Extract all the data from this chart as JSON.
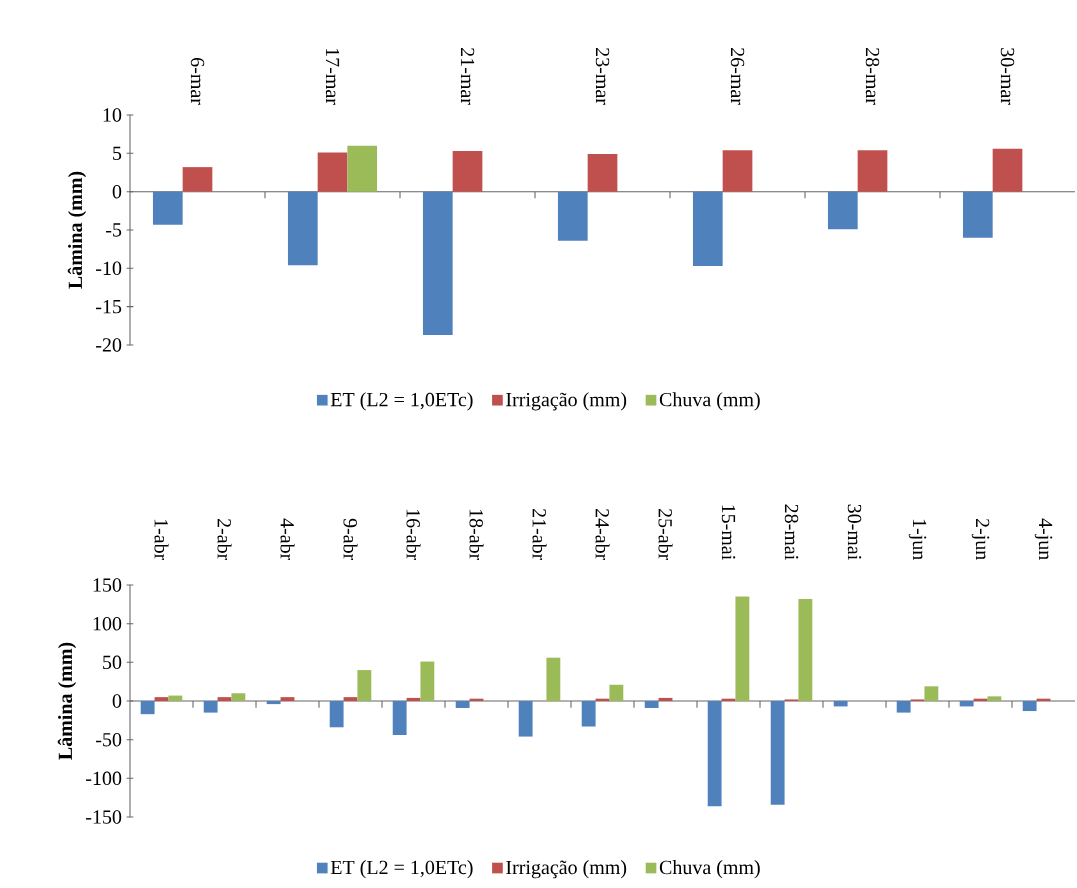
{
  "chart_data": [
    {
      "type": "bar",
      "ylabel": "Lâmina (mm)",
      "categories": [
        "6-mar",
        "17-mar",
        "21-mar",
        "23-mar",
        "26-mar",
        "28-mar",
        "30-mar"
      ],
      "ylim": [
        -20,
        10
      ],
      "yticks": [
        -20,
        -15,
        -10,
        -5,
        0,
        5,
        10
      ],
      "legend": "bottom",
      "series": [
        {
          "name": "ET (L2 = 1,0ETc)",
          "color": "#4f81bd",
          "values": [
            -4.3,
            -9.6,
            -18.7,
            -6.4,
            -9.7,
            -4.9,
            -6.0
          ]
        },
        {
          "name": "Irrigação (mm)",
          "color": "#c0504d",
          "values": [
            3.2,
            5.1,
            5.3,
            4.9,
            5.4,
            5.4,
            5.6
          ]
        },
        {
          "name": "Chuva (mm)",
          "color": "#9bbb59",
          "values": [
            null,
            6.0,
            null,
            null,
            null,
            null,
            null
          ]
        }
      ]
    },
    {
      "type": "bar",
      "ylabel": "Lâmina (mm)",
      "categories": [
        "1-abr",
        "2-abr",
        "4-abr",
        "9-abr",
        "16-abr",
        "18-abr",
        "21-abr",
        "24-abr",
        "25-abr",
        "15-mai",
        "28-mai",
        "30-mai",
        "1-jun",
        "2-jun",
        "4-jun"
      ],
      "ylim": [
        -150,
        150
      ],
      "yticks": [
        -150,
        -100,
        -50,
        0,
        50,
        100,
        150
      ],
      "legend": "bottom",
      "series": [
        {
          "name": "ET (L2 = 1,0ETc)",
          "color": "#4f81bd",
          "values": [
            -17,
            -15,
            -4,
            -34,
            -44,
            -9,
            -46,
            -33,
            -9,
            -136,
            -134,
            -7,
            -15,
            -7,
            -13
          ]
        },
        {
          "name": "Irrigação (mm)",
          "color": "#c0504d",
          "values": [
            5,
            5,
            5,
            5,
            4,
            3,
            null,
            3,
            4,
            3,
            2,
            null,
            2,
            3,
            3
          ]
        },
        {
          "name": "Chuva (mm)",
          "color": "#9bbb59",
          "values": [
            7,
            10,
            null,
            40,
            51,
            null,
            56,
            21,
            null,
            135,
            132,
            null,
            19,
            6,
            null
          ]
        }
      ]
    }
  ]
}
